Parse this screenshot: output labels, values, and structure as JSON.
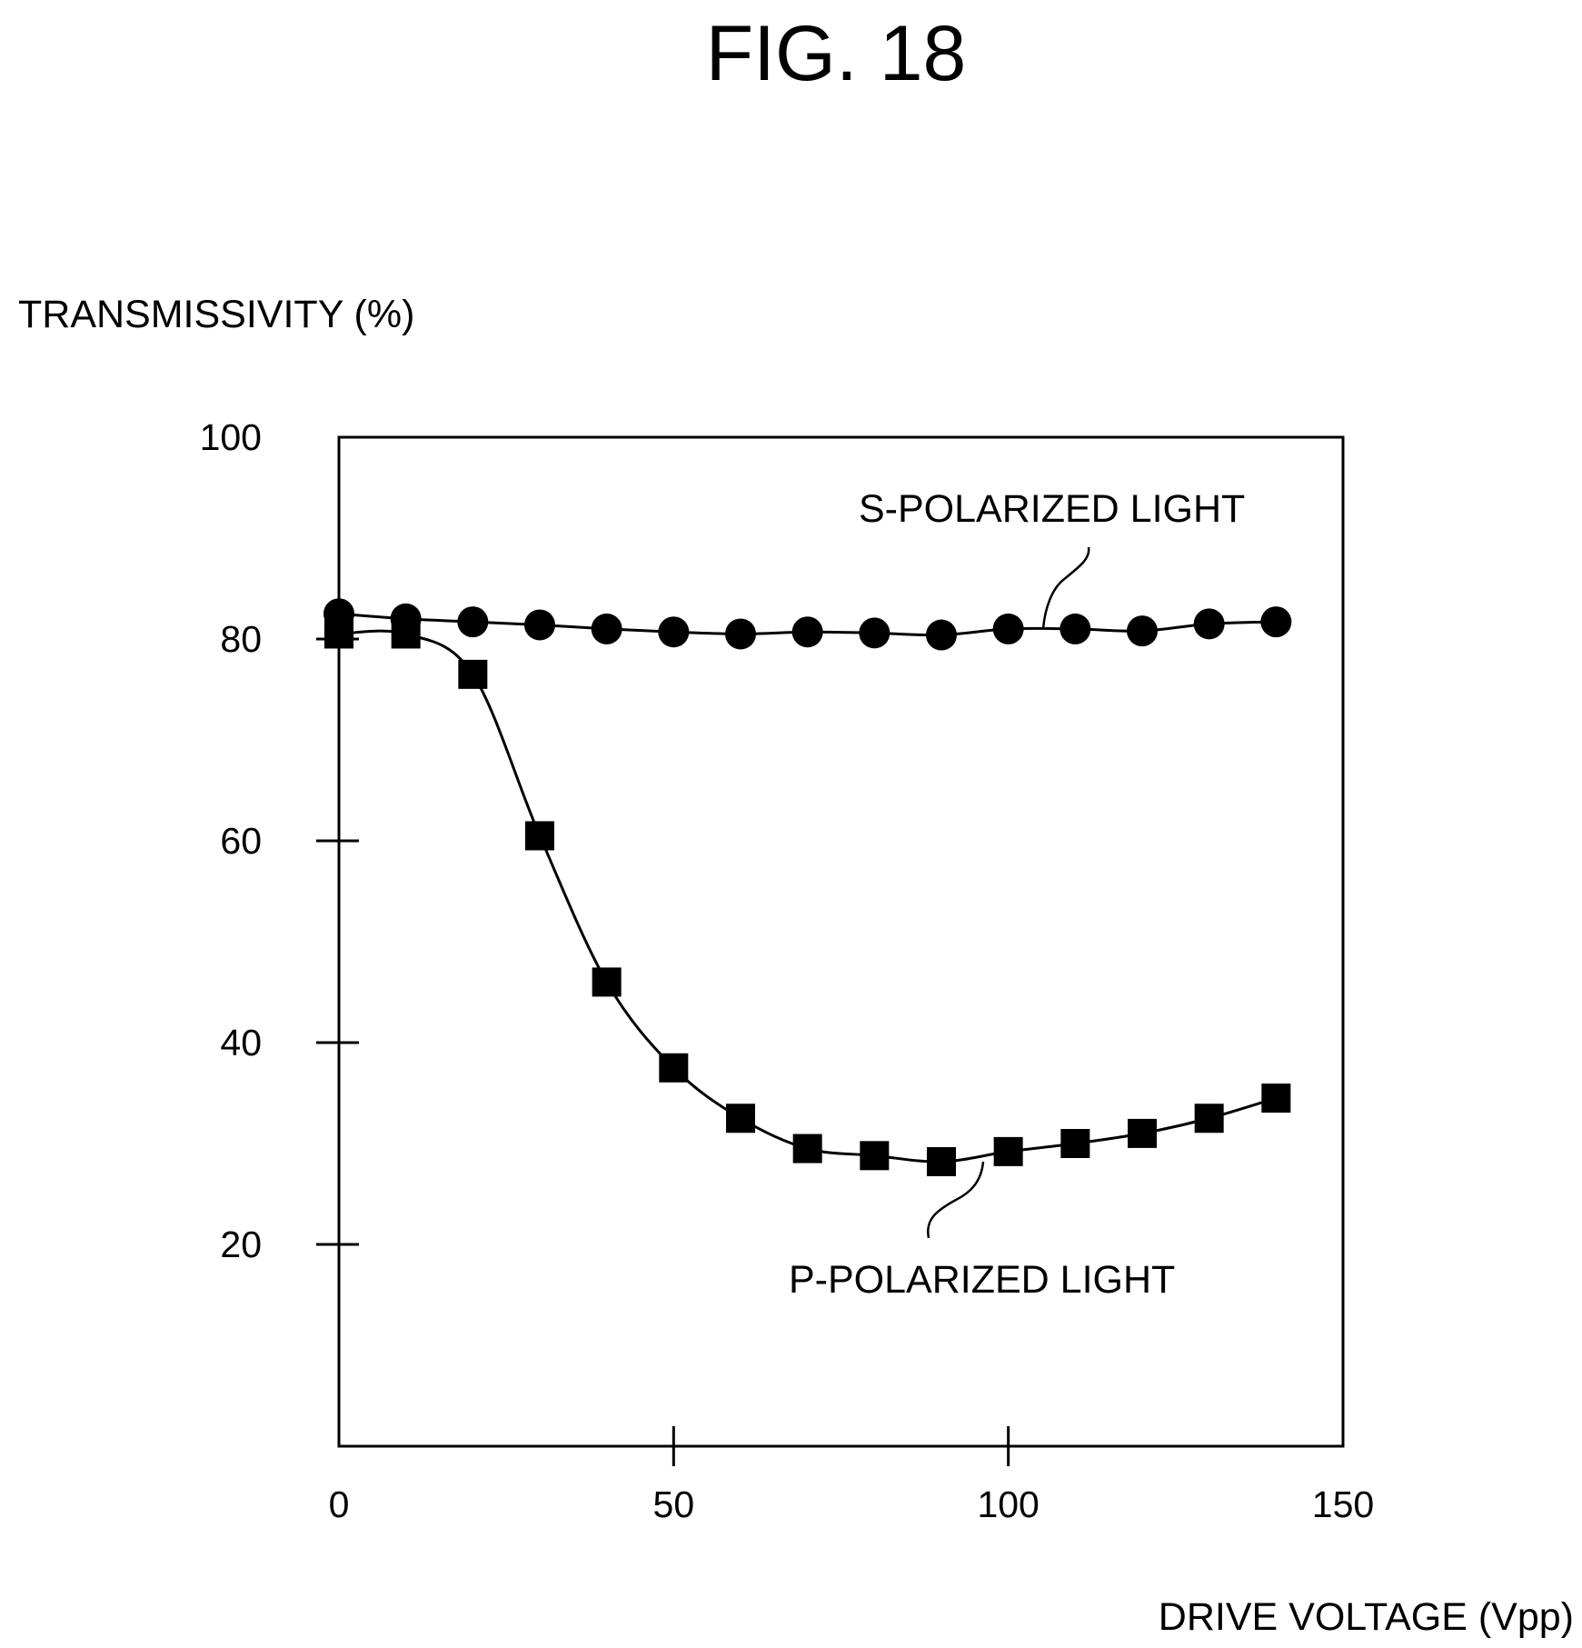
{
  "figure": {
    "title": "FIG. 18"
  },
  "chart_data": {
    "type": "scatter",
    "title": "FIG. 18",
    "ylabel": "TRANSMISSIVITY (%)",
    "xlabel": "DRIVE VOLTAGE (Vpp)",
    "xlim": [
      0,
      150
    ],
    "ylim": [
      0,
      100
    ],
    "x_ticks": [
      0,
      50,
      100,
      150
    ],
    "y_ticks": [
      20,
      40,
      60,
      80,
      100
    ],
    "grid": false,
    "legend": "none (series labeled by annotations with leader lines)",
    "series": [
      {
        "name": "S-POLARIZED LIGHT",
        "marker": "circle",
        "x": [
          0,
          10,
          20,
          30,
          40,
          50,
          60,
          70,
          80,
          90,
          100,
          110,
          120,
          130,
          140
        ],
        "values": [
          82.5,
          82,
          81.7,
          81.4,
          81,
          80.7,
          80.5,
          80.7,
          80.6,
          80.4,
          81,
          81,
          80.8,
          81.5,
          81.7
        ]
      },
      {
        "name": "P-POLARIZED LIGHT",
        "marker": "square",
        "x": [
          0,
          10,
          20,
          30,
          40,
          50,
          60,
          70,
          80,
          90,
          100,
          110,
          120,
          130,
          140
        ],
        "values": [
          80.5,
          80.5,
          76.5,
          60.5,
          46,
          37.5,
          32.5,
          29.5,
          28.8,
          28.2,
          29.2,
          30,
          31,
          32.5,
          34.5
        ]
      }
    ]
  }
}
